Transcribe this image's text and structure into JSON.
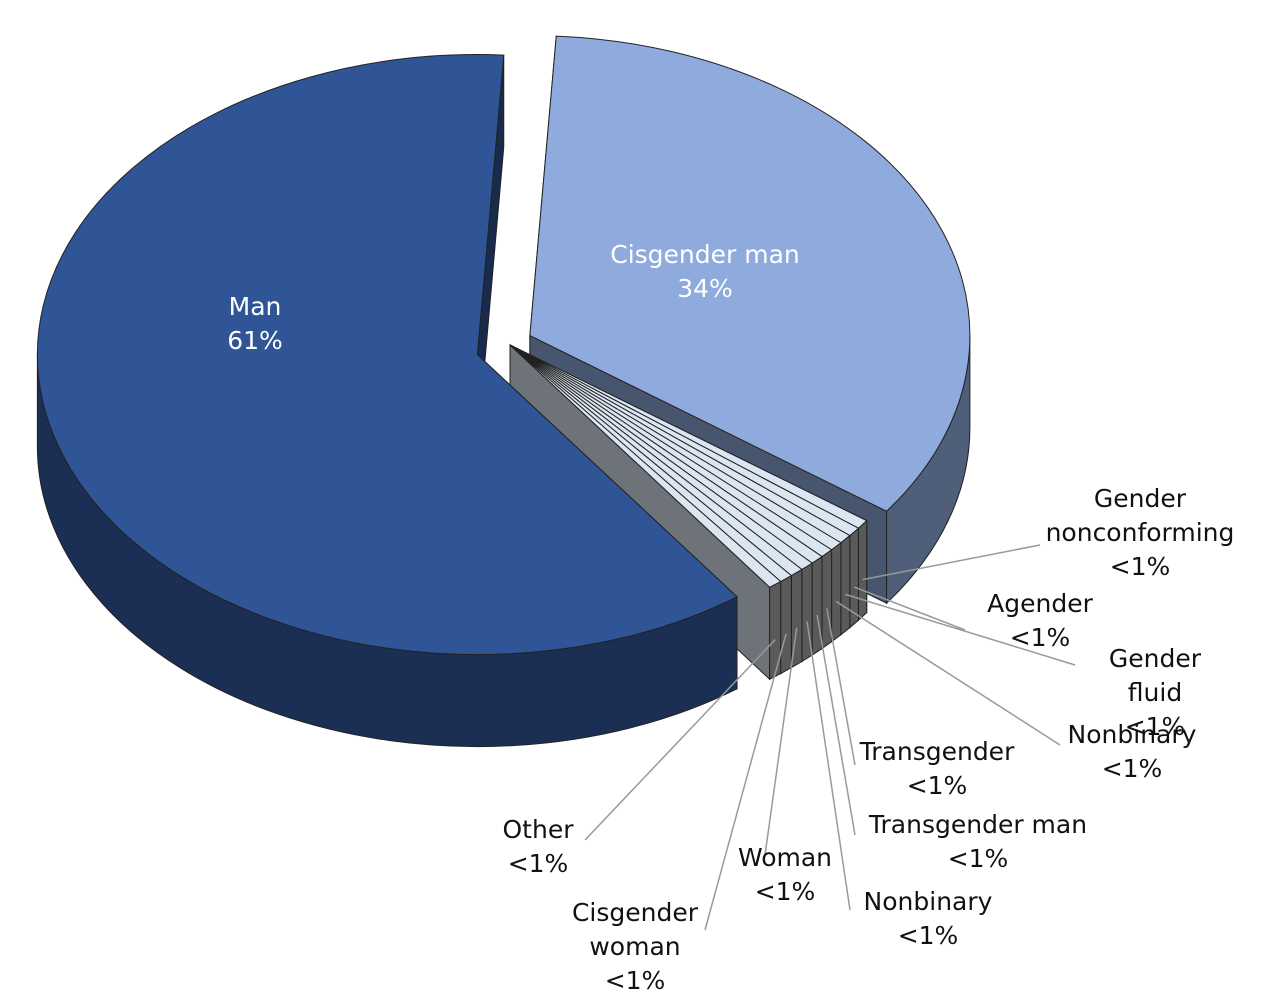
{
  "chart_data": {
    "type": "pie",
    "categories": [
      "Cisgender man",
      "Gender nonconforming",
      "Agender",
      "Gender fluid",
      "Nonbinary",
      "Transgender",
      "Transgender man",
      "Nonbinary",
      "Woman",
      "Cisgender woman",
      "Other",
      "Man"
    ],
    "values": [
      34,
      0.5,
      0.5,
      0.5,
      0.5,
      0.5,
      0.5,
      0.5,
      0.5,
      0.5,
      0.5,
      61
    ],
    "value_labels": [
      "34%",
      "<1%",
      "<1%",
      "<1%",
      "<1%",
      "<1%",
      "<1%",
      "<1%",
      "<1%",
      "<1%",
      "<1%",
      "61%"
    ],
    "colors": [
      "#8faadc",
      "#dce6f2",
      "#dce6f2",
      "#dce6f2",
      "#dce6f2",
      "#dce6f2",
      "#dce6f2",
      "#dce6f2",
      "#dce6f2",
      "#dce6f2",
      "#dce6f2",
      "#2f5597"
    ]
  }
}
